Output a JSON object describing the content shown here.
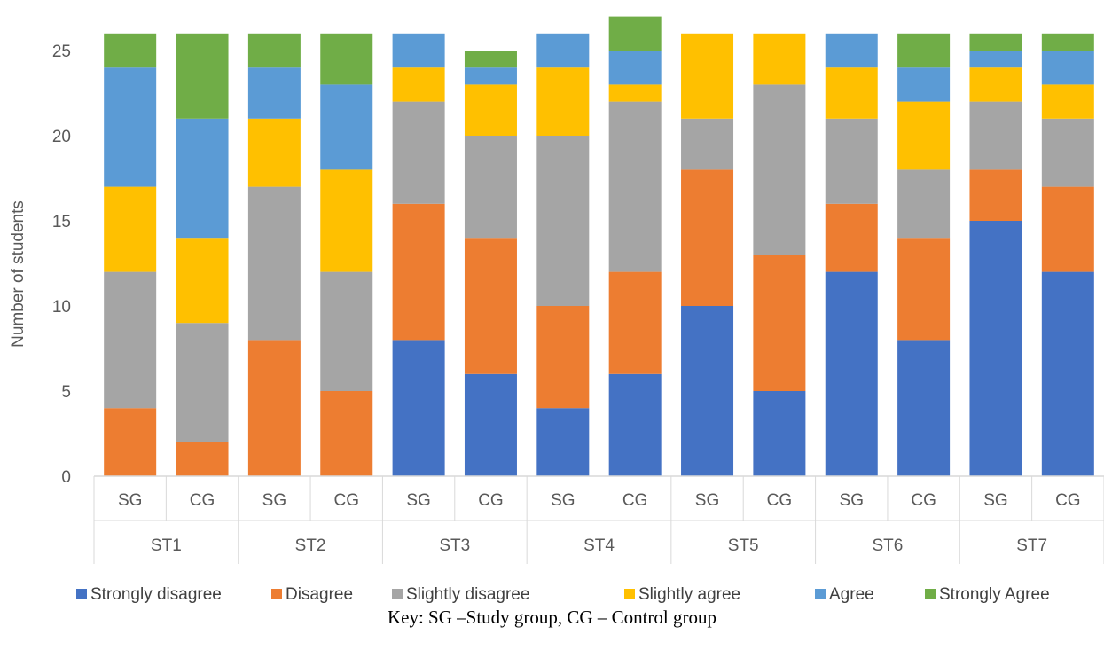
{
  "caption": "Key: SG –Study group, CG – Control group",
  "chart_data": {
    "type": "bar",
    "stacked": true,
    "ylabel": "Number of students",
    "ylim": [
      0,
      25
    ],
    "yticks": [
      0,
      5,
      10,
      15,
      20,
      25
    ],
    "grid": false,
    "legend_position": "bottom",
    "groups": [
      "ST1",
      "ST2",
      "ST3",
      "ST4",
      "ST5",
      "ST6",
      "ST7"
    ],
    "categories": [
      "SG",
      "CG",
      "SG",
      "CG",
      "SG",
      "CG",
      "SG",
      "CG",
      "SG",
      "CG",
      "SG",
      "CG",
      "SG",
      "CG"
    ],
    "series": [
      {
        "name": "Strongly disagree",
        "color": "#4472C4",
        "values": [
          0,
          0,
          0,
          0,
          8,
          6,
          4,
          6,
          10,
          5,
          12,
          8,
          15,
          12
        ]
      },
      {
        "name": "Disagree",
        "color": "#ED7D31",
        "values": [
          4,
          2,
          8,
          5,
          8,
          8,
          6,
          6,
          8,
          8,
          4,
          6,
          3,
          5
        ]
      },
      {
        "name": "Slightly disagree",
        "color": "#A5A5A5",
        "values": [
          8,
          7,
          9,
          7,
          6,
          6,
          10,
          10,
          3,
          10,
          5,
          4,
          4,
          4
        ]
      },
      {
        "name": "Slightly agree",
        "color": "#FFC000",
        "values": [
          5,
          5,
          4,
          6,
          2,
          3,
          4,
          1,
          5,
          3,
          3,
          4,
          2,
          2
        ]
      },
      {
        "name": "Agree",
        "color": "#5B9BD5",
        "values": [
          7,
          7,
          3,
          5,
          2,
          1,
          2,
          2,
          0,
          0,
          2,
          2,
          1,
          2
        ]
      },
      {
        "name": "Strongly Agree",
        "color": "#70AD47",
        "values": [
          2,
          5,
          2,
          3,
          0,
          1,
          0,
          2,
          0,
          0,
          0,
          2,
          1,
          1
        ]
      }
    ]
  }
}
